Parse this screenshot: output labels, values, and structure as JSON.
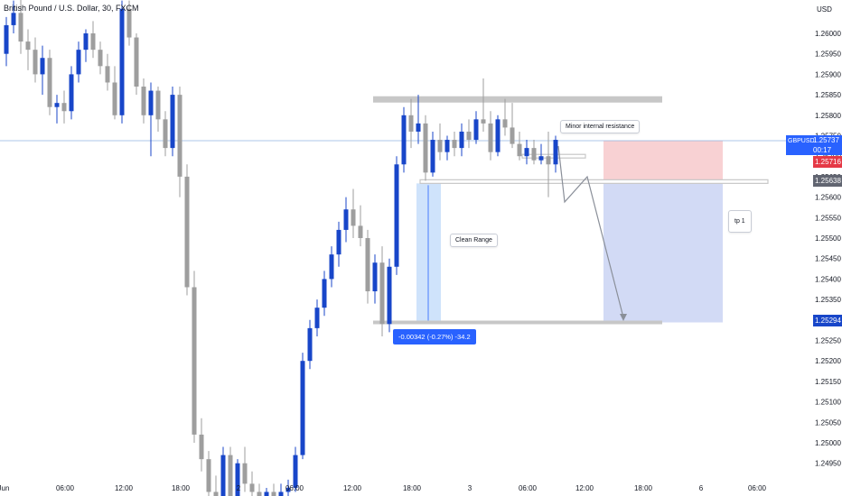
{
  "header": {
    "title": "British Pound / U.S. Dollar, 30, FXCM"
  },
  "price_axis": {
    "currency": "USD",
    "ticks": [
      "1.26000",
      "1.25950",
      "1.25900",
      "1.25850",
      "1.25800",
      "1.25750",
      "1.25700",
      "1.25650",
      "1.25600",
      "1.25550",
      "1.25500",
      "1.25450",
      "1.25400",
      "1.25350",
      "1.25300",
      "1.25250",
      "1.25200",
      "1.25150",
      "1.25100",
      "1.25050",
      "1.25000",
      "1.24950"
    ]
  },
  "time_axis": {
    "ticks": [
      "Jun",
      "06:00",
      "12:00",
      "18:00",
      "2",
      "06:00",
      "12:00",
      "18:00",
      "3",
      "06:00",
      "12:00",
      "18:00",
      "6",
      "06:00"
    ]
  },
  "price_tags": {
    "symbol": "GBPUSD",
    "last_price": "1.25737",
    "countdown": "00:17",
    "target_price": "1.25716",
    "support_price": "1.25638",
    "tp_price": "1.25294"
  },
  "annotations": {
    "minor_resistance": "Minor internal resistance",
    "clean_range": "Clean Range",
    "tp": "tp 1",
    "measure": "-0.00342 (-0.27%) -34.2"
  },
  "colors": {
    "bull": "#1846c9",
    "bear": "#9e9e9e",
    "short_zone": "#f8d1d3",
    "target_zone": "#d2daf5",
    "range_zone": "#cfe3fb",
    "level": "#c7c7c7",
    "last_price_line": "#90b4e0"
  },
  "chart_data": {
    "type": "candlestick",
    "title": "British Pound / U.S. Dollar, 30, FXCM",
    "ylabel": "USD",
    "ylim": [
      1.24935,
      1.26095
    ],
    "grid": false,
    "levels": {
      "resistance_zone": [
        1.2583,
        1.25842
      ],
      "support": 1.25638,
      "lower_range": 1.25294,
      "short_stop": 1.25716,
      "short_target": 1.25294
    },
    "candles": [
      [
        1.2595,
        1.2604,
        1.2592,
        1.2602
      ],
      [
        1.2602,
        1.2608,
        1.26,
        1.2605
      ],
      [
        1.2605,
        1.2609,
        1.2595,
        1.2598
      ],
      [
        1.2598,
        1.2601,
        1.2591,
        1.2596
      ],
      [
        1.2596,
        1.2599,
        1.2588,
        1.259
      ],
      [
        1.259,
        1.2597,
        1.2585,
        1.2594
      ],
      [
        1.2594,
        1.2596,
        1.258,
        1.2582
      ],
      [
        1.2582,
        1.2585,
        1.2578,
        1.2583
      ],
      [
        1.2583,
        1.2586,
        1.2578,
        1.2581
      ],
      [
        1.2581,
        1.2592,
        1.2579,
        1.259
      ],
      [
        1.259,
        1.2598,
        1.2588,
        1.2596
      ],
      [
        1.2596,
        1.2601,
        1.2593,
        1.26
      ],
      [
        1.26,
        1.2603,
        1.2594,
        1.2596
      ],
      [
        1.2596,
        1.2598,
        1.259,
        1.2592
      ],
      [
        1.2592,
        1.2595,
        1.2586,
        1.2588
      ],
      [
        1.2588,
        1.2592,
        1.2579,
        1.258
      ],
      [
        1.258,
        1.2608,
        1.2578,
        1.2606
      ],
      [
        1.2606,
        1.2608,
        1.2597,
        1.2599
      ],
      [
        1.2599,
        1.26,
        1.2585,
        1.2587
      ],
      [
        1.2587,
        1.2589,
        1.2578,
        1.258
      ],
      [
        1.258,
        1.2588,
        1.257,
        1.2586
      ],
      [
        1.2586,
        1.2587,
        1.2576,
        1.2579
      ],
      [
        1.2579,
        1.2581,
        1.257,
        1.2572
      ],
      [
        1.2572,
        1.2587,
        1.257,
        1.2585
      ],
      [
        1.2585,
        1.2587,
        1.256,
        1.2565
      ],
      [
        1.2565,
        1.2568,
        1.2536,
        1.2538
      ],
      [
        1.2538,
        1.2542,
        1.25,
        1.2502
      ],
      [
        1.2502,
        1.2506,
        1.2493,
        1.2496
      ],
      [
        1.2496,
        1.2498,
        1.2485,
        1.2488
      ],
      [
        1.2488,
        1.2492,
        1.2482,
        1.2485
      ],
      [
        1.2485,
        1.2499,
        1.2484,
        1.2497
      ],
      [
        1.2497,
        1.2499,
        1.2485,
        1.2487
      ],
      [
        1.2487,
        1.2496,
        1.2486,
        1.2495
      ],
      [
        1.2495,
        1.2499,
        1.2488,
        1.249
      ],
      [
        1.249,
        1.2493,
        1.2486,
        1.2488
      ],
      [
        1.2488,
        1.249,
        1.2485,
        1.2487
      ],
      [
        1.2487,
        1.2489,
        1.2485,
        1.2488
      ],
      [
        1.2488,
        1.249,
        1.2486,
        1.2487
      ],
      [
        1.2487,
        1.249,
        1.2486,
        1.2488
      ],
      [
        1.2488,
        1.2491,
        1.2486,
        1.2489
      ],
      [
        1.2489,
        1.2499,
        1.2488,
        1.2497
      ],
      [
        1.2497,
        1.2522,
        1.2496,
        1.252
      ],
      [
        1.252,
        1.253,
        1.2518,
        1.2528
      ],
      [
        1.2528,
        1.2535,
        1.2526,
        1.2533
      ],
      [
        1.2533,
        1.2542,
        1.2531,
        1.254
      ],
      [
        1.254,
        1.2548,
        1.2538,
        1.2546
      ],
      [
        1.2546,
        1.2554,
        1.2543,
        1.2552
      ],
      [
        1.2552,
        1.256,
        1.2549,
        1.2557
      ],
      [
        1.2557,
        1.2562,
        1.255,
        1.2553
      ],
      [
        1.2553,
        1.2558,
        1.2548,
        1.255
      ],
      [
        1.255,
        1.2552,
        1.2534,
        1.2537
      ],
      [
        1.2537,
        1.2546,
        1.2534,
        1.2544
      ],
      [
        1.2544,
        1.2548,
        1.2526,
        1.2529
      ],
      [
        1.2529,
        1.2545,
        1.2527,
        1.2543
      ],
      [
        1.2543,
        1.257,
        1.2541,
        1.2568
      ],
      [
        1.2568,
        1.2582,
        1.2566,
        1.258
      ],
      [
        1.258,
        1.2584,
        1.2572,
        1.2576
      ],
      [
        1.2576,
        1.2585,
        1.2573,
        1.2578
      ],
      [
        1.2578,
        1.258,
        1.2564,
        1.2566
      ],
      [
        1.2566,
        1.2576,
        1.2565,
        1.2574
      ],
      [
        1.2574,
        1.2578,
        1.2569,
        1.2571
      ],
      [
        1.2571,
        1.2575,
        1.2569,
        1.2574
      ],
      [
        1.2574,
        1.2576,
        1.257,
        1.2572
      ],
      [
        1.2572,
        1.2578,
        1.257,
        1.2576
      ],
      [
        1.2576,
        1.2579,
        1.2572,
        1.2574
      ],
      [
        1.2574,
        1.2581,
        1.2573,
        1.2579
      ],
      [
        1.2579,
        1.2589,
        1.2576,
        1.2578
      ],
      [
        1.2578,
        1.2581,
        1.2569,
        1.2571
      ],
      [
        1.2571,
        1.258,
        1.257,
        1.2579
      ],
      [
        1.2579,
        1.2584,
        1.2575,
        1.2577
      ],
      [
        1.2577,
        1.2583,
        1.2572,
        1.2573
      ],
      [
        1.2573,
        1.2576,
        1.2569,
        1.257
      ],
      [
        1.257,
        1.2574,
        1.2568,
        1.2572
      ],
      [
        1.2572,
        1.2574,
        1.2568,
        1.2569
      ],
      [
        1.2569,
        1.2573,
        1.2568,
        1.257
      ],
      [
        1.257,
        1.2576,
        1.256,
        1.2568
      ],
      [
        1.2568,
        1.2575,
        1.2566,
        1.2574
      ]
    ]
  }
}
